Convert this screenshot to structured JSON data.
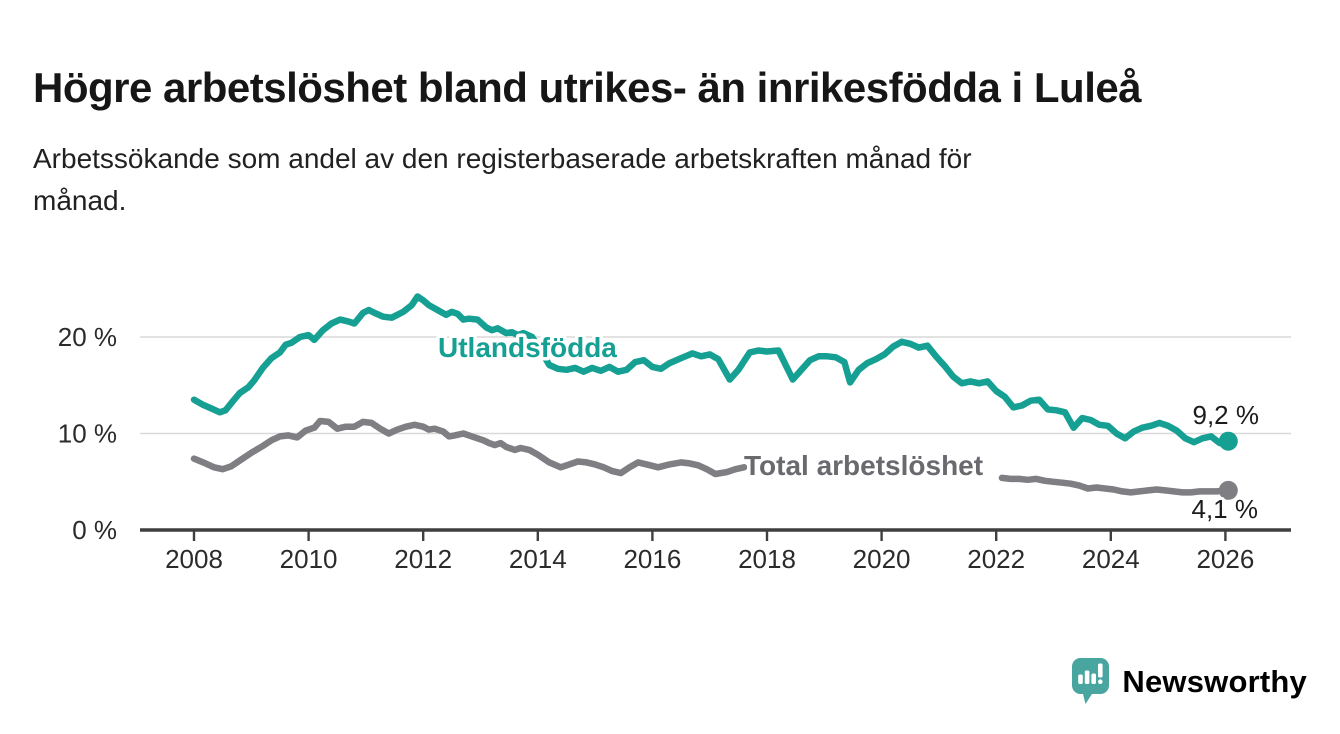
{
  "title": "Högre arbetslöshet bland utrikes- än inrikesfödda i Luleå",
  "subtitle": "Arbetssökande som andel av den registerbaserade arbetskraften månad för månad.",
  "subtitle_lines": [
    "Arbetssökande som andel av den registerbaserade arbetskraften månad för",
    "månad."
  ],
  "branding": {
    "logo_text": "Newsworthy",
    "logo_color": "#48a59f",
    "logo_icon": "speech-bubble-bar-chart-icon"
  },
  "chart_data": {
    "type": "line",
    "title": "Högre arbetslöshet bland utrikes- än inrikesfödda i Luleå",
    "subtitle": "Arbetssökande som andel av den registerbaserade arbetskraften månad för månad.",
    "grid": "horizontal-only",
    "legend_position": "inline-labels",
    "x_axis": {
      "ticks": [
        2008,
        2010,
        2012,
        2014,
        2016,
        2018,
        2020,
        2022,
        2024,
        2026
      ],
      "range": [
        2007.1,
        2027.1
      ]
    },
    "y_axis": {
      "unit": "%",
      "range": [
        0,
        25
      ],
      "ticks": [
        {
          "value": 0,
          "label": "0 %"
        },
        {
          "value": 10,
          "label": "10 %"
        },
        {
          "value": 20,
          "label": "20 %"
        }
      ],
      "gridline_values": [
        10,
        20
      ]
    },
    "series": [
      {
        "id": "utlandsfodda",
        "name": "Utlandsfödda",
        "color": "#16a094",
        "end_label": "9,2 %",
        "end_value": 9.2,
        "segments": [
          [
            [
              2008.0,
              13.5
            ],
            [
              2008.15,
              13.0
            ],
            [
              2008.3,
              12.6
            ],
            [
              2008.45,
              12.2
            ],
            [
              2008.55,
              12.4
            ],
            [
              2008.7,
              13.5
            ],
            [
              2008.8,
              14.2
            ],
            [
              2008.95,
              14.8
            ],
            [
              2009.05,
              15.5
            ],
            [
              2009.2,
              16.8
            ],
            [
              2009.35,
              17.8
            ],
            [
              2009.5,
              18.4
            ],
            [
              2009.6,
              19.2
            ],
            [
              2009.7,
              19.4
            ],
            [
              2009.85,
              20.0
            ],
            [
              2010.0,
              20.2
            ],
            [
              2010.1,
              19.7
            ],
            [
              2010.25,
              20.7
            ],
            [
              2010.4,
              21.4
            ],
            [
              2010.55,
              21.8
            ],
            [
              2010.7,
              21.6
            ],
            [
              2010.8,
              21.4
            ],
            [
              2010.95,
              22.5
            ],
            [
              2011.05,
              22.8
            ],
            [
              2011.15,
              22.5
            ],
            [
              2011.3,
              22.1
            ],
            [
              2011.45,
              22.0
            ],
            [
              2011.55,
              22.3
            ],
            [
              2011.65,
              22.6
            ],
            [
              2011.8,
              23.3
            ],
            [
              2011.9,
              24.2
            ],
            [
              2012.0,
              23.8
            ],
            [
              2012.1,
              23.3
            ],
            [
              2012.25,
              22.8
            ],
            [
              2012.4,
              22.3
            ],
            [
              2012.5,
              22.6
            ],
            [
              2012.6,
              22.4
            ],
            [
              2012.7,
              21.8
            ],
            [
              2012.8,
              21.9
            ],
            [
              2012.95,
              21.8
            ],
            [
              2013.1,
              21.0
            ],
            [
              2013.2,
              20.7
            ],
            [
              2013.3,
              20.9
            ],
            [
              2013.45,
              20.4
            ],
            [
              2013.55,
              20.5
            ],
            [
              2013.65,
              20.2
            ],
            [
              2013.75,
              20.4
            ],
            [
              2013.9,
              20.0
            ],
            [
              2014.05,
              18.6
            ],
            [
              2014.2,
              17.1
            ],
            [
              2014.35,
              16.7
            ],
            [
              2014.5,
              16.6
            ],
            [
              2014.65,
              16.8
            ],
            [
              2014.8,
              16.4
            ],
            [
              2014.95,
              16.8
            ],
            [
              2015.1,
              16.5
            ],
            [
              2015.25,
              16.9
            ],
            [
              2015.4,
              16.4
            ],
            [
              2015.55,
              16.6
            ],
            [
              2015.7,
              17.4
            ],
            [
              2015.85,
              17.6
            ],
            [
              2016.0,
              16.9
            ],
            [
              2016.15,
              16.7
            ],
            [
              2016.3,
              17.3
            ],
            [
              2016.5,
              17.8
            ],
            [
              2016.7,
              18.3
            ],
            [
              2016.85,
              18.0
            ],
            [
              2017.0,
              18.2
            ],
            [
              2017.15,
              17.7
            ],
            [
              2017.35,
              15.6
            ],
            [
              2017.5,
              16.6
            ],
            [
              2017.7,
              18.4
            ],
            [
              2017.85,
              18.6
            ],
            [
              2018.0,
              18.5
            ],
            [
              2018.2,
              18.6
            ],
            [
              2018.35,
              16.8
            ],
            [
              2018.45,
              15.6
            ],
            [
              2018.6,
              16.6
            ],
            [
              2018.75,
              17.6
            ],
            [
              2018.9,
              18.0
            ],
            [
              2019.05,
              18.0
            ],
            [
              2019.2,
              17.9
            ],
            [
              2019.35,
              17.4
            ],
            [
              2019.45,
              15.3
            ],
            [
              2019.6,
              16.6
            ],
            [
              2019.75,
              17.3
            ],
            [
              2019.9,
              17.7
            ],
            [
              2020.05,
              18.2
            ],
            [
              2020.2,
              19.0
            ],
            [
              2020.35,
              19.5
            ],
            [
              2020.5,
              19.3
            ],
            [
              2020.65,
              18.9
            ],
            [
              2020.8,
              19.1
            ],
            [
              2020.95,
              18.0
            ],
            [
              2021.1,
              17.0
            ],
            [
              2021.25,
              15.9
            ],
            [
              2021.4,
              15.2
            ],
            [
              2021.55,
              15.4
            ],
            [
              2021.7,
              15.2
            ],
            [
              2021.85,
              15.4
            ],
            [
              2022.0,
              14.4
            ],
            [
              2022.15,
              13.8
            ],
            [
              2022.3,
              12.7
            ],
            [
              2022.45,
              12.9
            ],
            [
              2022.6,
              13.4
            ],
            [
              2022.75,
              13.5
            ],
            [
              2022.9,
              12.5
            ],
            [
              2023.05,
              12.4
            ],
            [
              2023.2,
              12.2
            ],
            [
              2023.35,
              10.6
            ],
            [
              2023.5,
              11.6
            ],
            [
              2023.65,
              11.4
            ],
            [
              2023.8,
              10.9
            ],
            [
              2023.95,
              10.8
            ],
            [
              2024.1,
              10.0
            ],
            [
              2024.25,
              9.5
            ],
            [
              2024.4,
              10.2
            ],
            [
              2024.55,
              10.6
            ],
            [
              2024.7,
              10.8
            ],
            [
              2024.85,
              11.1
            ],
            [
              2025.0,
              10.8
            ],
            [
              2025.15,
              10.3
            ],
            [
              2025.3,
              9.5
            ],
            [
              2025.45,
              9.1
            ],
            [
              2025.6,
              9.5
            ],
            [
              2025.75,
              9.7
            ],
            [
              2025.9,
              9.0
            ],
            [
              2026.05,
              9.2
            ]
          ]
        ]
      },
      {
        "id": "total",
        "name": "Total arbetslöshet",
        "color": "#7e7e83",
        "end_label": "4,1 %",
        "end_value": 4.1,
        "segments": [
          [
            [
              2008.0,
              7.4
            ],
            [
              2008.2,
              6.9
            ],
            [
              2008.35,
              6.5
            ],
            [
              2008.5,
              6.3
            ],
            [
              2008.65,
              6.6
            ],
            [
              2008.8,
              7.2
            ],
            [
              2009.0,
              8.0
            ],
            [
              2009.2,
              8.7
            ],
            [
              2009.35,
              9.3
            ],
            [
              2009.5,
              9.7
            ],
            [
              2009.65,
              9.8
            ],
            [
              2009.8,
              9.6
            ],
            [
              2009.95,
              10.3
            ],
            [
              2010.1,
              10.6
            ],
            [
              2010.2,
              11.3
            ],
            [
              2010.35,
              11.2
            ],
            [
              2010.5,
              10.5
            ],
            [
              2010.65,
              10.7
            ],
            [
              2010.8,
              10.7
            ],
            [
              2010.95,
              11.2
            ],
            [
              2011.1,
              11.1
            ],
            [
              2011.25,
              10.5
            ],
            [
              2011.4,
              10.0
            ],
            [
              2011.55,
              10.4
            ],
            [
              2011.7,
              10.7
            ],
            [
              2011.85,
              10.9
            ],
            [
              2012.0,
              10.7
            ],
            [
              2012.1,
              10.4
            ],
            [
              2012.2,
              10.5
            ],
            [
              2012.35,
              10.2
            ],
            [
              2012.45,
              9.7
            ],
            [
              2012.55,
              9.8
            ],
            [
              2012.7,
              10.0
            ],
            [
              2012.8,
              9.8
            ],
            [
              2012.9,
              9.6
            ],
            [
              2013.05,
              9.3
            ],
            [
              2013.15,
              9.0
            ],
            [
              2013.25,
              8.8
            ],
            [
              2013.35,
              9.0
            ],
            [
              2013.45,
              8.6
            ],
            [
              2013.6,
              8.3
            ],
            [
              2013.7,
              8.5
            ],
            [
              2013.85,
              8.3
            ],
            [
              2014.0,
              7.8
            ],
            [
              2014.2,
              7.0
            ],
            [
              2014.4,
              6.5
            ],
            [
              2014.55,
              6.8
            ],
            [
              2014.7,
              7.1
            ],
            [
              2014.85,
              7.0
            ],
            [
              2015.0,
              6.8
            ],
            [
              2015.15,
              6.5
            ],
            [
              2015.3,
              6.1
            ],
            [
              2015.45,
              5.9
            ],
            [
              2015.6,
              6.5
            ],
            [
              2015.75,
              7.0
            ],
            [
              2015.9,
              6.8
            ],
            [
              2016.1,
              6.5
            ],
            [
              2016.3,
              6.8
            ],
            [
              2016.5,
              7.0
            ],
            [
              2016.65,
              6.9
            ],
            [
              2016.8,
              6.7
            ],
            [
              2016.95,
              6.3
            ],
            [
              2017.1,
              5.8
            ],
            [
              2017.3,
              6.0
            ],
            [
              2017.45,
              6.3
            ],
            [
              2017.6,
              6.5
            ]
          ],
          [
            [
              2022.1,
              5.4
            ],
            [
              2022.25,
              5.3
            ],
            [
              2022.4,
              5.3
            ],
            [
              2022.55,
              5.2
            ],
            [
              2022.7,
              5.3
            ],
            [
              2022.85,
              5.1
            ],
            [
              2023.0,
              5.0
            ],
            [
              2023.15,
              4.9
            ],
            [
              2023.3,
              4.8
            ],
            [
              2023.45,
              4.6
            ],
            [
              2023.6,
              4.3
            ],
            [
              2023.75,
              4.4
            ],
            [
              2023.9,
              4.3
            ],
            [
              2024.05,
              4.2
            ],
            [
              2024.2,
              4.0
            ],
            [
              2024.35,
              3.9
            ],
            [
              2024.5,
              4.0
            ],
            [
              2024.65,
              4.1
            ],
            [
              2024.8,
              4.2
            ],
            [
              2024.95,
              4.1
            ],
            [
              2025.1,
              4.0
            ],
            [
              2025.25,
              3.9
            ],
            [
              2025.4,
              3.9
            ],
            [
              2025.55,
              4.0
            ],
            [
              2025.7,
              4.0
            ],
            [
              2025.85,
              4.0
            ],
            [
              2026.05,
              4.1
            ]
          ]
        ]
      }
    ]
  }
}
